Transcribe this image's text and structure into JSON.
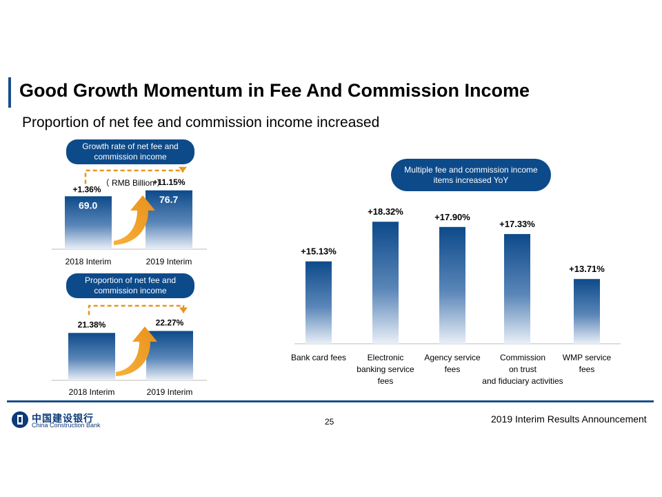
{
  "title": "Good Growth Momentum in Fee And Commission Income",
  "subtitle": "Proportion of net fee and commission income increased",
  "colors": {
    "brand": "#0d4a8a",
    "accent": "#f0a020",
    "dashed": "#e8951e"
  },
  "footer": {
    "page_number": "25",
    "announcement": "2019 Interim Results Announcement",
    "logo_cn": "中国建设银行",
    "logo_en": "China Construction Bank",
    "logo_icon": "ccb-logo-icon"
  },
  "chart_data": [
    {
      "type": "bar",
      "title": "Growth rate of net fee and commission income",
      "unit_note": "（ RMB Billion ）",
      "categories": [
        "2018 Interim",
        "2019 Interim"
      ],
      "values": [
        69.0,
        76.7
      ],
      "value_labels": [
        "69.0",
        "76.7"
      ],
      "growth_labels": [
        "+1.36%",
        "+11.15%"
      ],
      "ylim": [
        0,
        90
      ]
    },
    {
      "type": "bar",
      "title": "Proportion of net fee and commission income",
      "categories": [
        "2018 Interim",
        "2019 Interim"
      ],
      "values": [
        21.38,
        22.27
      ],
      "value_labels": [
        "21.38%",
        "22.27%"
      ],
      "ylim": [
        0,
        33
      ]
    },
    {
      "type": "bar",
      "title": "Multiple fee and commission income items increased YoY",
      "categories": [
        [
          "Bank card fees"
        ],
        [
          "Electronic",
          "banking service",
          "fees"
        ],
        [
          "Agency service",
          "fees"
        ],
        [
          "Commission",
          "on trust",
          "and fiduciary activities"
        ],
        [
          "WMP service",
          "fees"
        ]
      ],
      "values": [
        15.13,
        18.32,
        17.9,
        17.33,
        13.71
      ],
      "value_labels": [
        "+15.13%",
        "+18.32%",
        "+17.90%",
        "+17.33%",
        "+13.71%"
      ],
      "ylim": [
        8.5,
        19.5
      ]
    }
  ]
}
